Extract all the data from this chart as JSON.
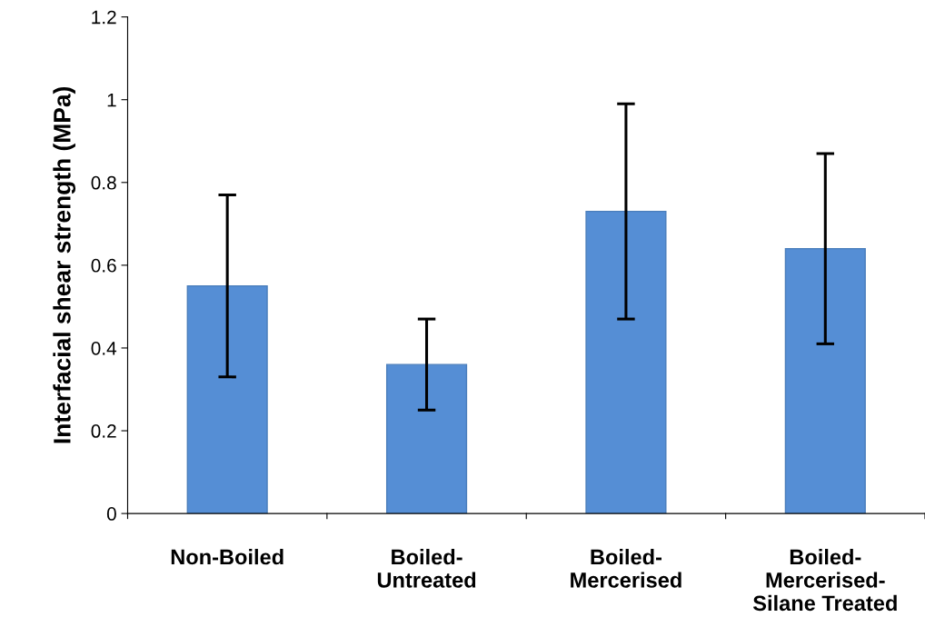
{
  "chart_data": {
    "type": "bar",
    "ylabel": "Interfacial shear strength (MPa)",
    "categories": [
      "Non-Boiled",
      "Boiled-\nUntreated",
      "Boiled-\nMercerised",
      "Boiled-\nMercerised-\nSilane Treated"
    ],
    "values": [
      0.55,
      0.36,
      0.73,
      0.64
    ],
    "errors": [
      0.22,
      0.11,
      0.26,
      0.23
    ],
    "color": "#558ed5",
    "ylim": [
      0,
      1.2
    ],
    "yticks": [
      0,
      0.2,
      0.4,
      0.6,
      0.8,
      1,
      1.2
    ],
    "grid": false,
    "legend": false
  }
}
